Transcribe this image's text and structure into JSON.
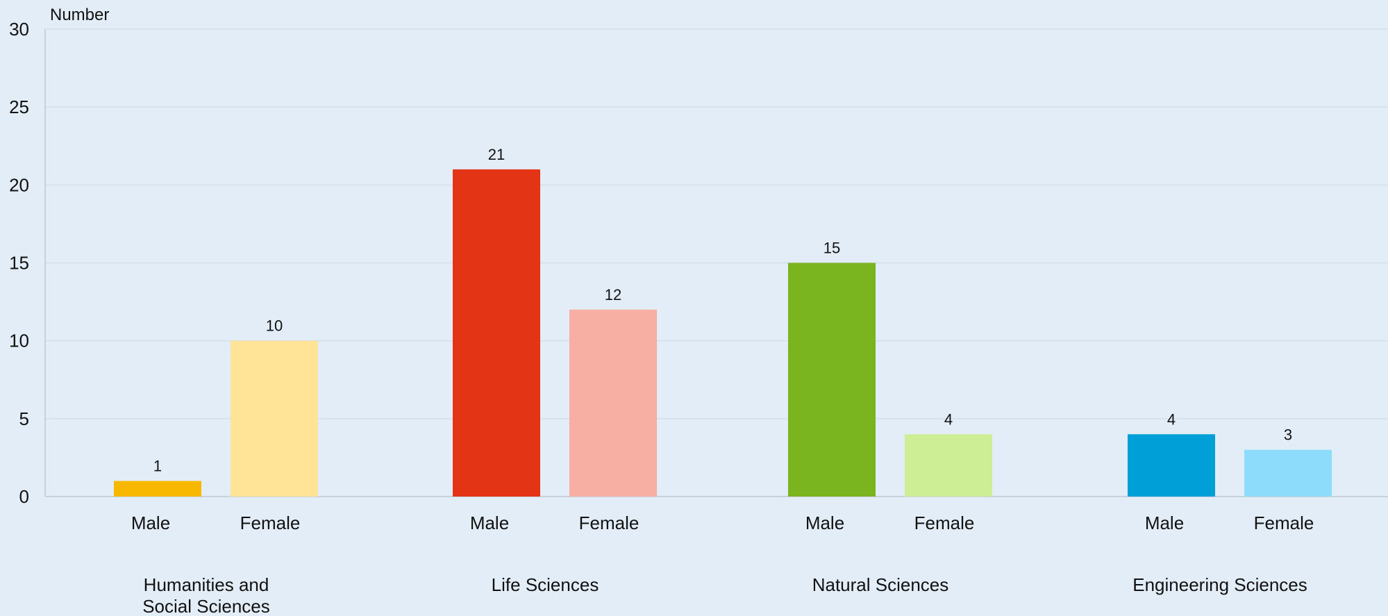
{
  "chart_data": {
    "type": "bar",
    "ylabel": "Number",
    "ylim": [
      0,
      30
    ],
    "yticks": [
      0,
      5,
      10,
      15,
      20,
      25,
      30
    ],
    "grid": true,
    "groups": [
      {
        "label": "Humanities and\nSocial Sciences",
        "bars": [
          {
            "label": "Male",
            "value": 1,
            "color": "#f9b800"
          },
          {
            "label": "Female",
            "value": 10,
            "color": "#ffe497"
          }
        ]
      },
      {
        "label": "Life Sciences",
        "bars": [
          {
            "label": "Male",
            "value": 21,
            "color": "#e33516"
          },
          {
            "label": "Female",
            "value": 12,
            "color": "#f6afa2"
          }
        ]
      },
      {
        "label": "Natural Sciences",
        "bars": [
          {
            "label": "Male",
            "value": 15,
            "color": "#7ab51f"
          },
          {
            "label": "Female",
            "value": 4,
            "color": "#ceee96"
          }
        ]
      },
      {
        "label": "Engineering Sciences",
        "bars": [
          {
            "label": "Male",
            "value": 4,
            "color": "#009fd8"
          },
          {
            "label": "Female",
            "value": 3,
            "color": "#8ddcfc"
          }
        ]
      }
    ]
  }
}
